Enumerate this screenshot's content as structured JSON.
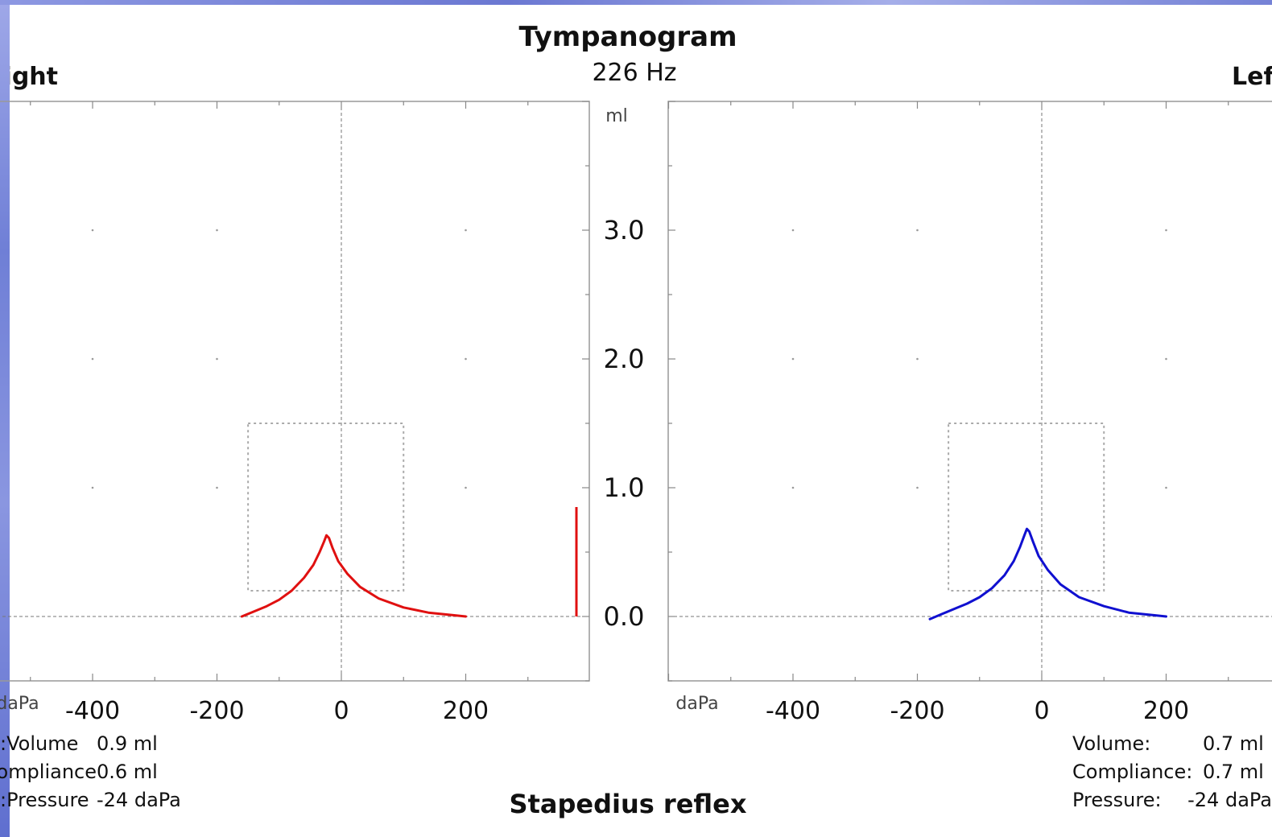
{
  "chart_data": [
    {
      "type": "line",
      "panel": "right-ear",
      "title": "Tympanogram",
      "subtitle": "226 Hz",
      "ear_label": "Right",
      "x_unit": "daPa",
      "y_unit": "ml",
      "x_ticks": [
        "-400",
        "-200",
        "0",
        "200"
      ],
      "y_ticks": [
        "3.0",
        "2.0",
        "1.0",
        "0.0"
      ],
      "xlim": [
        -600,
        400
      ],
      "ylim": [
        -0.5,
        4.0
      ],
      "grid": true,
      "color": "#e01010",
      "series": [
        {
          "x": [
            -160,
            -140,
            -120,
            -100,
            -80,
            -60,
            -45,
            -35,
            -28,
            -24,
            -20,
            -14,
            -5,
            10,
            30,
            60,
            100,
            140,
            180,
            200
          ],
          "y": [
            0.0,
            0.04,
            0.08,
            0.13,
            0.2,
            0.3,
            0.4,
            0.5,
            0.58,
            0.63,
            0.61,
            0.53,
            0.43,
            0.33,
            0.23,
            0.14,
            0.07,
            0.03,
            0.01,
            0.0
          ]
        }
      ],
      "volume_marker": 0.85,
      "pass_box": {
        "x": [
          -150,
          100
        ],
        "y": [
          0.2,
          1.5
        ]
      },
      "stats": [
        {
          "label": "Volume:",
          "value": "0.9 ml"
        },
        {
          "label": "Compliance:",
          "value": "0.6 ml"
        },
        {
          "label": "Pressure:",
          "value": "-24 daPa"
        }
      ]
    },
    {
      "type": "line",
      "panel": "left-ear",
      "ear_label": "Left",
      "x_unit": "daPa",
      "x_ticks": [
        "-400",
        "-200",
        "0",
        "200"
      ],
      "xlim": [
        -600,
        400
      ],
      "ylim": [
        -0.5,
        4.0
      ],
      "grid": true,
      "color": "#1010d0",
      "series": [
        {
          "x": [
            -180,
            -160,
            -140,
            -120,
            -100,
            -80,
            -60,
            -45,
            -35,
            -28,
            -24,
            -20,
            -14,
            -5,
            10,
            30,
            60,
            100,
            140,
            180,
            200
          ],
          "y": [
            -0.02,
            0.02,
            0.06,
            0.1,
            0.15,
            0.22,
            0.32,
            0.43,
            0.54,
            0.63,
            0.68,
            0.66,
            0.58,
            0.47,
            0.36,
            0.25,
            0.15,
            0.08,
            0.03,
            0.01,
            0.0
          ]
        }
      ],
      "pass_box": {
        "x": [
          -150,
          100
        ],
        "y": [
          0.2,
          1.5
        ]
      },
      "stats": [
        {
          "label": "Volume:",
          "value": "0.7 ml"
        },
        {
          "label": "Compliance:",
          "value": "0.7 ml"
        },
        {
          "label": "Pressure:",
          "value": "-24 daPa"
        }
      ]
    }
  ],
  "footer": "Stapedius reflex"
}
